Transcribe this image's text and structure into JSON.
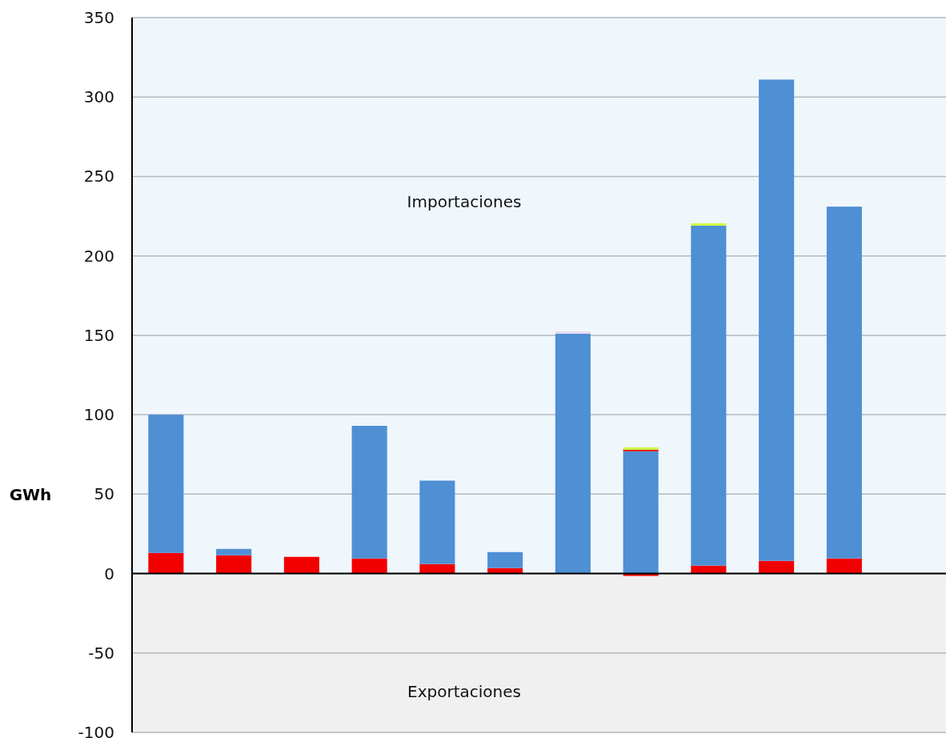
{
  "chart_data": {
    "type": "bar",
    "ylabel": "GWh",
    "stacked": true,
    "categories": [
      null,
      null,
      null,
      null,
      null,
      null,
      null,
      null,
      null,
      null,
      null,
      null
    ],
    "series": [
      {
        "color": "#f20000",
        "values": [
          13,
          11.5,
          10.5,
          9.5,
          6,
          3.5,
          0,
          -1.5,
          5,
          8,
          9.5,
          null
        ]
      },
      {
        "color": "#4f8fd4",
        "values": [
          87,
          4,
          0,
          83.5,
          52.5,
          10,
          151,
          77,
          214,
          303,
          221.5,
          null
        ]
      },
      {
        "color": "#f20000",
        "values": [
          0,
          0,
          0,
          0,
          0,
          0,
          0,
          1,
          0,
          0,
          0,
          null
        ]
      },
      {
        "color": "#ccff44",
        "values": [
          0,
          0,
          0,
          0,
          0,
          0,
          0,
          1.5,
          1.5,
          0,
          0,
          null
        ]
      },
      {
        "color": "#e8dcf0",
        "values": [
          0,
          0,
          0,
          0,
          0,
          0,
          1.5,
          0,
          0,
          0,
          0,
          null
        ]
      }
    ],
    "ylim": [
      -100,
      350
    ],
    "yticks": [
      -100,
      -50,
      0,
      50,
      100,
      150,
      200,
      250,
      300,
      350
    ],
    "grid": "y",
    "bands": [
      {
        "axis": "y",
        "from": 0,
        "to": 350,
        "label": "Importaciones",
        "color": "#eff7fd"
      },
      {
        "axis": "y",
        "from": -100,
        "to": 0,
        "label": "Exportaciones",
        "color": "#f0f0f0"
      }
    ]
  }
}
